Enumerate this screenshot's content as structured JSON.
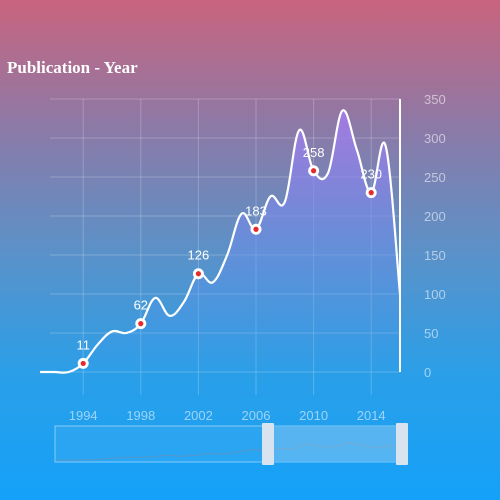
{
  "title": "Publication - Year",
  "chart_data": {
    "type": "area",
    "title": "Publication - Year",
    "xlabel": "",
    "ylabel": "",
    "x": [
      1991,
      1992,
      1993,
      1994,
      1995,
      1996,
      1997,
      1998,
      1999,
      2000,
      2001,
      2002,
      2003,
      2004,
      2005,
      2006,
      2007,
      2008,
      2009,
      2010,
      2011,
      2012,
      2013,
      2014,
      2015,
      2016
    ],
    "values": [
      0,
      0,
      0,
      11,
      35,
      52,
      50,
      62,
      95,
      72,
      90,
      126,
      115,
      150,
      203,
      183,
      225,
      218,
      310,
      258,
      255,
      335,
      285,
      230,
      290,
      100
    ],
    "labeled_points": [
      {
        "x": 1994,
        "y": 11,
        "label": "11"
      },
      {
        "x": 1998,
        "y": 62,
        "label": "62"
      },
      {
        "x": 2002,
        "y": 126,
        "label": "126"
      },
      {
        "x": 2006,
        "y": 183,
        "label": "183"
      },
      {
        "x": 2010,
        "y": 258,
        "label": "258"
      },
      {
        "x": 2014,
        "y": 230,
        "label": "230"
      }
    ],
    "xticks": [
      1994,
      1998,
      2002,
      2006,
      2010,
      2014
    ],
    "yticks": [
      0,
      50,
      100,
      150,
      200,
      250,
      300,
      350
    ],
    "xlim": [
      1991,
      2016
    ],
    "ylim": [
      0,
      350
    ],
    "grid": true,
    "y_axis_position": "right",
    "colors": {
      "line": "#ffffff",
      "area_top": "#a67be8",
      "area_bottom": "#3a9cf0",
      "point_fill": "#e52b2b"
    },
    "datazoom": {
      "start_fraction": 0.6,
      "end_fraction": 1.0
    }
  }
}
